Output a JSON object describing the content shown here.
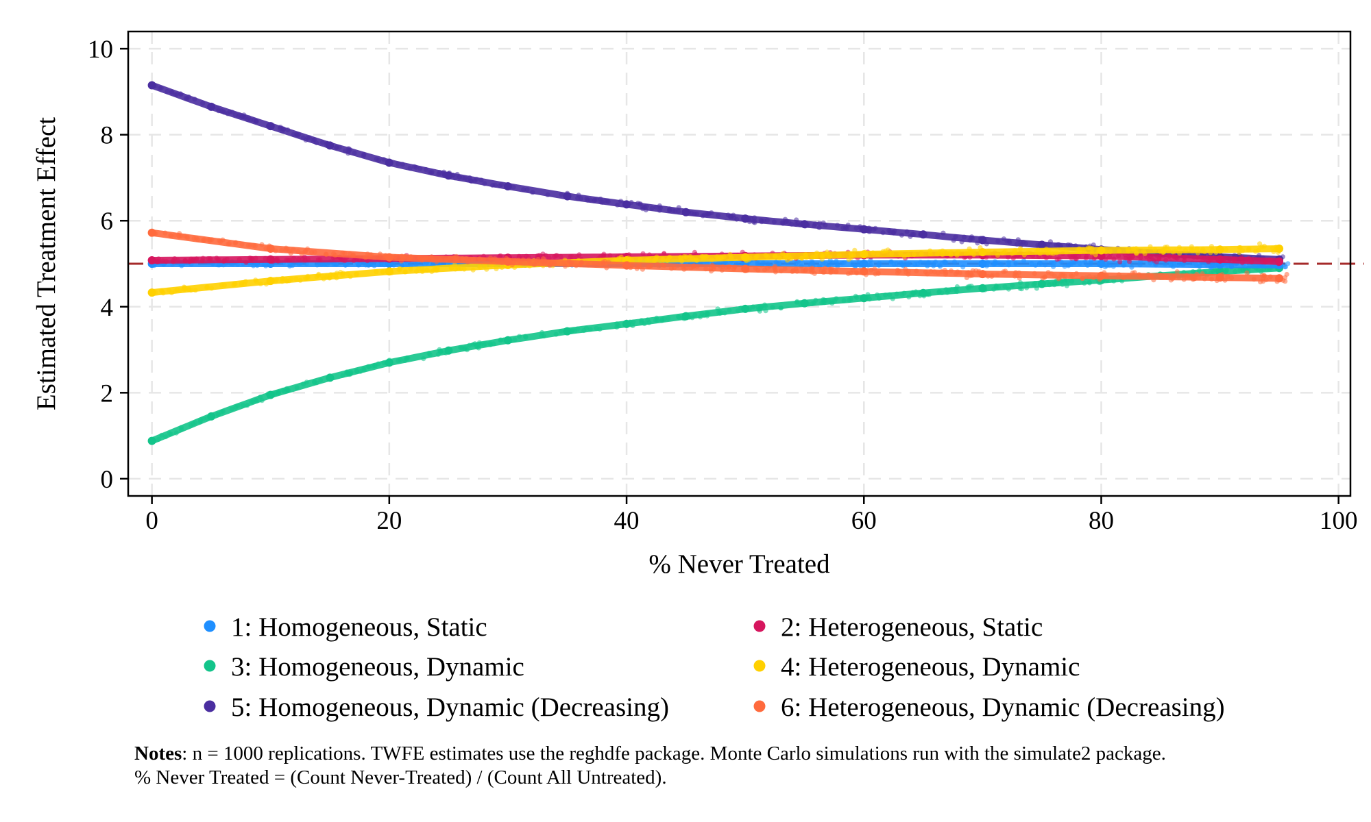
{
  "chart_data": {
    "type": "scatter",
    "xlabel": "% Never Treated",
    "ylabel": "Estimated Treatment Effect",
    "xlim": [
      -2,
      101
    ],
    "ylim": [
      -0.4,
      10.4
    ],
    "x_ticks": [
      0,
      20,
      40,
      60,
      80,
      100
    ],
    "y_ticks": [
      0,
      2,
      4,
      6,
      8,
      10
    ],
    "x_tick_labels": [
      "0",
      "20",
      "40",
      "60",
      "80",
      "100"
    ],
    "y_tick_labels": [
      "0",
      "2",
      "4",
      "6",
      "8",
      "10"
    ],
    "grid": true,
    "reference_line": {
      "y": 5,
      "color": "#a52a2a",
      "style": "dashed"
    },
    "legend_position": "bottom",
    "series": [
      {
        "name": "1: Homogeneous, Static",
        "color": "#1f8fff",
        "x": [
          0,
          10,
          20,
          30,
          40,
          50,
          60,
          70,
          80,
          90,
          95
        ],
        "y": [
          5.0,
          5.0,
          5.0,
          5.0,
          5.0,
          5.0,
          5.0,
          5.0,
          5.0,
          4.98,
          4.97
        ]
      },
      {
        "name": "2: Heterogeneous, Static",
        "color": "#d6165e",
        "x": [
          0,
          10,
          20,
          30,
          40,
          50,
          60,
          70,
          80,
          90,
          95
        ],
        "y": [
          5.08,
          5.1,
          5.12,
          5.14,
          5.16,
          5.18,
          5.2,
          5.2,
          5.18,
          5.1,
          5.05
        ]
      },
      {
        "name": "3: Homogeneous, Dynamic",
        "color": "#13c48a",
        "x": [
          0,
          5,
          10,
          15,
          20,
          25,
          30,
          35,
          40,
          45,
          50,
          55,
          60,
          65,
          70,
          75,
          80,
          85,
          90,
          95
        ],
        "y": [
          0.88,
          1.45,
          1.95,
          2.35,
          2.7,
          2.98,
          3.22,
          3.43,
          3.6,
          3.78,
          3.95,
          4.08,
          4.2,
          4.32,
          4.43,
          4.53,
          4.62,
          4.72,
          4.82,
          4.9
        ]
      },
      {
        "name": "4: Heterogeneous, Dynamic",
        "color": "#ffd000",
        "x": [
          0,
          10,
          20,
          30,
          40,
          50,
          60,
          70,
          80,
          90,
          95
        ],
        "y": [
          4.33,
          4.6,
          4.82,
          4.97,
          5.08,
          5.15,
          5.22,
          5.27,
          5.31,
          5.33,
          5.35
        ]
      },
      {
        "name": "5: Homogeneous, Dynamic (Decreasing)",
        "color": "#4a2ea0",
        "x": [
          0,
          5,
          10,
          15,
          20,
          25,
          30,
          35,
          40,
          45,
          50,
          55,
          60,
          65,
          70,
          75,
          80,
          85,
          90,
          95
        ],
        "y": [
          9.15,
          8.65,
          8.2,
          7.75,
          7.35,
          7.05,
          6.8,
          6.57,
          6.38,
          6.2,
          6.05,
          5.92,
          5.8,
          5.68,
          5.55,
          5.44,
          5.33,
          5.24,
          5.16,
          5.1
        ]
      },
      {
        "name": "6: Heterogeneous, Dynamic (Decreasing)",
        "color": "#ff6a3d",
        "x": [
          0,
          10,
          20,
          30,
          40,
          50,
          60,
          70,
          80,
          90,
          95
        ],
        "y": [
          5.72,
          5.35,
          5.15,
          5.05,
          4.96,
          4.88,
          4.82,
          4.76,
          4.72,
          4.68,
          4.66
        ]
      }
    ]
  },
  "notes": {
    "bold": "Notes",
    "line1": ": n = 1000 replications. TWFE estimates use the reghdfe package. Monte Carlo simulations run with the simulate2 package.",
    "line2": "% Never Treated = (Count Never-Treated) / (Count All Untreated)."
  }
}
